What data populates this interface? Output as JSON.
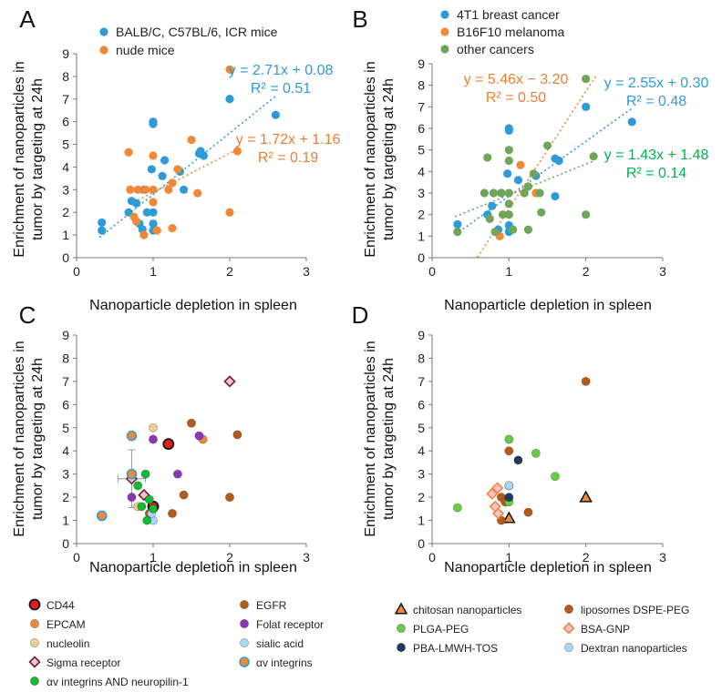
{
  "colors": {
    "blue": "#2e9bd6",
    "orange": "#f0883a",
    "green": "#6fa55a",
    "darkorange": "#b65a1b",
    "lightgreen": "#66cc44",
    "purple": "#8a39b6",
    "sand": "#e8cf94",
    "lightblue": "#aad8f0",
    "navy": "#1f3a60",
    "pinkdiamond": "#f3c3cf",
    "red": "#e02020",
    "brightgreen": "#11bb33",
    "eqnorange": "#ed7d31",
    "eqnblue": "#2e9bd6",
    "eqngreen": "#00b050"
  },
  "chart_data": [
    {
      "panel": "A",
      "type": "scatter",
      "xlabel": "Nanoparticle depletion in  spleen",
      "ylabel_line1": "Enrichment of nanoparticles in",
      "ylabel_line2": "tumor by targeting at 24h",
      "xlim": [
        0,
        3
      ],
      "ylim": [
        0,
        9
      ],
      "xticks": [
        "0",
        "1",
        "2",
        "3"
      ],
      "yticks": [
        "0",
        "1",
        "2",
        "3",
        "4",
        "5",
        "6",
        "7",
        "8",
        "9"
      ],
      "series": [
        {
          "name": "BALB/C, C57BL/6, ICR mice",
          "color": "blue",
          "points": [
            [
              0.33,
              1.55
            ],
            [
              0.33,
              1.2
            ],
            [
              0.68,
              2.0
            ],
            [
              0.72,
              2.5
            ],
            [
              0.78,
              2.4
            ],
            [
              0.82,
              1.5
            ],
            [
              0.86,
              1.25
            ],
            [
              0.88,
              3.0
            ],
            [
              0.92,
              2.0
            ],
            [
              0.98,
              3.9
            ],
            [
              1.0,
              6.0
            ],
            [
              1.0,
              5.9
            ],
            [
              1.0,
              2.0
            ],
            [
              1.0,
              1.5
            ],
            [
              1.0,
              1.2
            ],
            [
              1.12,
              3.6
            ],
            [
              1.15,
              4.3
            ],
            [
              1.35,
              3.8
            ],
            [
              1.4,
              3.0
            ],
            [
              1.6,
              4.6
            ],
            [
              1.62,
              4.7
            ],
            [
              1.66,
              4.5
            ],
            [
              2.0,
              7.0
            ],
            [
              2.6,
              6.3
            ]
          ],
          "trend": {
            "slope": 2.71,
            "intercept": 0.08,
            "x": [
              0.3,
              2.6
            ]
          }
        },
        {
          "name": "nude mice",
          "color": "orange",
          "points": [
            [
              0.68,
              4.65
            ],
            [
              0.7,
              3.0
            ],
            [
              0.75,
              1.8
            ],
            [
              0.78,
              1.6
            ],
            [
              0.8,
              3.0
            ],
            [
              0.88,
              1.0
            ],
            [
              0.9,
              3.0
            ],
            [
              1.0,
              4.5
            ],
            [
              1.0,
              3.0
            ],
            [
              1.0,
              2.45
            ],
            [
              1.05,
              1.2
            ],
            [
              1.2,
              3.0
            ],
            [
              1.25,
              3.3
            ],
            [
              1.25,
              1.3
            ],
            [
              1.32,
              3.9
            ],
            [
              1.5,
              5.2
            ],
            [
              1.58,
              2.85
            ],
            [
              2.0,
              8.3
            ],
            [
              2.0,
              2.0
            ],
            [
              2.1,
              4.7
            ]
          ],
          "trend": {
            "slope": 1.72,
            "intercept": 1.16,
            "x": [
              0.8,
              2.1
            ]
          }
        }
      ],
      "equations": [
        {
          "line1": "y = 2.71x + 0.08",
          "line2": "R² = 0.51",
          "color": "eqnblue"
        },
        {
          "line1": "y = 1.72x + 1.16",
          "line2": "R² = 0.19",
          "color": "eqnorange"
        }
      ],
      "legend": [
        {
          "label": "BALB/C, C57BL/6, ICR mice",
          "color": "blue"
        },
        {
          "label": "nude mice",
          "color": "orange"
        }
      ]
    },
    {
      "panel": "B",
      "type": "scatter",
      "xlabel": "Nanoparticle depletion in  spleen",
      "ylabel_line1": "Enrichment of nanoparticles in",
      "ylabel_line2": "tumor by targeting at 24h",
      "xlim": [
        0,
        3
      ],
      "ylim": [
        0,
        9
      ],
      "xticks": [
        "0",
        "1",
        "2",
        "3"
      ],
      "yticks": [
        "0",
        "1",
        "2",
        "3",
        "4",
        "5",
        "6",
        "7",
        "8",
        "9"
      ],
      "series": [
        {
          "name": "4T1  breast cancer",
          "color": "blue",
          "points": [
            [
              0.33,
              1.55
            ],
            [
              0.72,
              2.0
            ],
            [
              0.78,
              2.4
            ],
            [
              0.86,
              1.3
            ],
            [
              0.9,
              3.0
            ],
            [
              0.98,
              3.9
            ],
            [
              1.0,
              6.0
            ],
            [
              1.0,
              5.9
            ],
            [
              1.0,
              1.5
            ],
            [
              1.0,
              1.2
            ],
            [
              1.12,
              3.6
            ],
            [
              1.35,
              3.8
            ],
            [
              1.6,
              4.6
            ],
            [
              1.65,
              4.5
            ],
            [
              1.6,
              2.85
            ],
            [
              2.0,
              7.0
            ],
            [
              2.6,
              6.3
            ]
          ],
          "trend": {
            "slope": 2.55,
            "intercept": 0.3,
            "x": [
              0.4,
              2.6
            ]
          }
        },
        {
          "name": "B16F10 melanoma",
          "color": "orange",
          "points": [
            [
              0.88,
              1.0
            ],
            [
              1.15,
              4.3
            ],
            [
              1.35,
              3.0
            ]
          ],
          "trend": {
            "slope": 5.46,
            "intercept": -3.2,
            "x": [
              0.59,
              2.13
            ]
          }
        },
        {
          "name": "other cancers",
          "color": "green",
          "points": [
            [
              0.33,
              1.2
            ],
            [
              0.68,
              3.0
            ],
            [
              0.72,
              4.65
            ],
            [
              0.75,
              1.8
            ],
            [
              0.8,
              3.0
            ],
            [
              0.82,
              1.2
            ],
            [
              0.9,
              3.0
            ],
            [
              0.92,
              2.0
            ],
            [
              1.0,
              5.0
            ],
            [
              1.0,
              4.5
            ],
            [
              1.0,
              3.0
            ],
            [
              1.0,
              2.5
            ],
            [
              1.0,
              2.0
            ],
            [
              1.05,
              1.3
            ],
            [
              1.2,
              3.0
            ],
            [
              1.25,
              3.3
            ],
            [
              1.25,
              1.3
            ],
            [
              1.32,
              3.9
            ],
            [
              1.4,
              3.0
            ],
            [
              1.5,
              5.2
            ],
            [
              1.42,
              2.1
            ],
            [
              2.0,
              8.3
            ],
            [
              2.0,
              2.0
            ],
            [
              2.1,
              4.7
            ]
          ],
          "trend": {
            "slope": 1.43,
            "intercept": 1.48,
            "x": [
              0.3,
              2.1
            ]
          }
        }
      ],
      "equations": [
        {
          "line1": "y = 5.46x − 3.20",
          "line2": "R² = 0.50",
          "color": "eqnorange"
        },
        {
          "line1": "y = 2.55x + 0.30",
          "line2": "R² = 0.48",
          "color": "eqnblue"
        },
        {
          "line1": "y = 1.43x + 1.48",
          "line2": "R² = 0.14",
          "color": "eqngreen"
        }
      ],
      "legend": [
        {
          "label": "4T1  breast cancer",
          "color": "blue"
        },
        {
          "label": "B16F10 melanoma",
          "color": "orange"
        },
        {
          "label": "other cancers",
          "color": "green"
        }
      ]
    },
    {
      "panel": "C",
      "type": "scatter",
      "xlabel": "Nanoparticle depletion in  spleen",
      "ylabel_line1": "Enrichment of nanoparticles in",
      "ylabel_line2": "tumor by targeting at 24h",
      "xlim": [
        0,
        3
      ],
      "ylim": [
        0,
        9
      ],
      "xticks": [
        "0",
        "1",
        "2",
        "3"
      ],
      "yticks": [
        "0",
        "1",
        "2",
        "3",
        "4",
        "5",
        "6",
        "7",
        "8",
        "9"
      ],
      "series": [
        {
          "name": "CD44",
          "color": "red",
          "shape": "circle-bold",
          "points": [
            [
              1.0,
              1.6
            ],
            [
              1.2,
              4.3
            ]
          ]
        },
        {
          "name": "EGFR",
          "color": "darkorange",
          "shape": "circle",
          "points": [
            [
              1.5,
              5.2
            ],
            [
              2.1,
              4.7
            ],
            [
              2.0,
              2.0
            ],
            [
              1.4,
              2.1
            ],
            [
              1.25,
              1.3
            ],
            [
              0.95,
              1.3
            ]
          ]
        },
        {
          "name": "EPCAM",
          "color": "orange",
          "shape": "circle",
          "points": [
            [
              1.0,
              1.5
            ],
            [
              1.65,
              4.5
            ]
          ]
        },
        {
          "name": "Folat receptor",
          "color": "purple",
          "shape": "circle",
          "points": [
            [
              1.0,
              4.5
            ],
            [
              1.6,
              4.65
            ],
            [
              1.32,
              3.0
            ],
            [
              0.72,
              2.0
            ]
          ]
        },
        {
          "name": "nucleolin",
          "color": "sand",
          "shape": "circle",
          "points": [
            [
              1.0,
              5.0
            ],
            [
              0.8,
              1.6
            ]
          ]
        },
        {
          "name": "sialic acid",
          "color": "lightblue",
          "shape": "circle",
          "points": [
            [
              1.0,
              1.0
            ],
            [
              0.98,
              1.3
            ]
          ]
        },
        {
          "name": "Sigma receptor",
          "color": "pinkdiamond",
          "shape": "diamond",
          "points": [
            [
              2.0,
              7.0
            ],
            [
              0.88,
              2.1
            ],
            [
              0.72,
              2.8
            ]
          ]
        },
        {
          "name": "αv integrins",
          "color": "orange",
          "shape": "circle-blue",
          "points": [
            [
              0.33,
              1.2
            ],
            [
              0.72,
              4.65
            ],
            [
              0.72,
              3.0
            ]
          ]
        },
        {
          "name": "αv integrins AND neuropilin-1",
          "color": "brightgreen",
          "shape": "circle",
          "points": [
            [
              0.9,
              3.0
            ],
            [
              0.8,
              2.5
            ],
            [
              0.92,
              1.0
            ],
            [
              0.85,
              1.6
            ],
            [
              0.95,
              1.9
            ],
            [
              1.0,
              1.5
            ]
          ]
        }
      ],
      "errorbar": {
        "x": 0.72,
        "y": 2.8,
        "xerr": 0.18,
        "yerr": 1.25
      },
      "legend": [
        {
          "label": "CD44",
          "color": "red",
          "shape": "circle-bold"
        },
        {
          "label": "EGFR",
          "color": "darkorange",
          "shape": "circle"
        },
        {
          "label": "EPCAM",
          "color": "orange",
          "shape": "circle"
        },
        {
          "label": "Folat receptor",
          "color": "purple",
          "shape": "circle"
        },
        {
          "label": "nucleolin",
          "color": "sand",
          "shape": "circle"
        },
        {
          "label": "sialic acid",
          "color": "lightblue",
          "shape": "circle"
        },
        {
          "label": "Sigma receptor",
          "color": "pinkdiamond",
          "shape": "diamond"
        },
        {
          "label": "αv integrins",
          "color": "orange",
          "shape": "circle-blue"
        },
        {
          "label": "αv integrins AND neuropilin-1",
          "color": "brightgreen",
          "shape": "circle"
        }
      ]
    },
    {
      "panel": "D",
      "type": "scatter",
      "xlabel": "Nanoparticle depletion in  spleen",
      "ylabel_line1": "Enrichment of nanoparticles in",
      "ylabel_line2": "tumor by targeting at 24h",
      "xlim": [
        0,
        3
      ],
      "ylim": [
        0,
        9
      ],
      "xticks": [
        "0",
        "1",
        "2",
        "3"
      ],
      "yticks": [
        "0",
        "1",
        "2",
        "3",
        "4",
        "5",
        "6",
        "7",
        "8",
        "9"
      ],
      "series": [
        {
          "name": "chitosan nanoparticles",
          "color": "orange",
          "shape": "triangle",
          "points": [
            [
              1.0,
              1.1
            ],
            [
              2.0,
              2.0
            ]
          ]
        },
        {
          "name": "liposomes DSPE-PEG",
          "color": "darkorange",
          "shape": "circle",
          "points": [
            [
              2.0,
              7.0
            ],
            [
              1.0,
              4.0
            ],
            [
              0.9,
              2.0
            ],
            [
              0.95,
              1.8
            ],
            [
              1.25,
              1.35
            ],
            [
              0.9,
              1.0
            ]
          ]
        },
        {
          "name": "PLGA-PEG",
          "color": "lightgreen",
          "shape": "circle",
          "points": [
            [
              1.0,
              4.5
            ],
            [
              1.35,
              3.9
            ],
            [
              1.6,
              2.9
            ],
            [
              0.33,
              1.55
            ],
            [
              1.0,
              2.5
            ],
            [
              1.0,
              1.8
            ]
          ]
        },
        {
          "name": "BSA-GNP",
          "color": "pinkdiamond",
          "shape": "diamond-orange",
          "points": [
            [
              0.85,
              2.4
            ],
            [
              0.78,
              2.15
            ],
            [
              0.82,
              1.6
            ],
            [
              0.86,
              1.3
            ]
          ]
        },
        {
          "name": "PBA-LMWH-TOS",
          "color": "navy",
          "shape": "circle",
          "points": [
            [
              1.12,
              3.6
            ],
            [
              1.0,
              2.0
            ]
          ]
        },
        {
          "name": "Dextran nanoparticles",
          "color": "lightblue",
          "shape": "circle",
          "points": [
            [
              1.0,
              2.5
            ]
          ]
        }
      ],
      "legend": [
        {
          "label": "chitosan nanoparticles",
          "color": "orange",
          "shape": "triangle"
        },
        {
          "label": "liposomes DSPE-PEG",
          "color": "darkorange",
          "shape": "circle"
        },
        {
          "label": "PLGA-PEG",
          "color": "lightgreen",
          "shape": "circle"
        },
        {
          "label": "BSA-GNP",
          "color": "pinkdiamond",
          "shape": "diamond-orange"
        },
        {
          "label": "PBA-LMWH-TOS",
          "color": "navy",
          "shape": "circle"
        },
        {
          "label": "Dextran nanoparticles",
          "color": "lightblue",
          "shape": "circle"
        }
      ]
    }
  ]
}
